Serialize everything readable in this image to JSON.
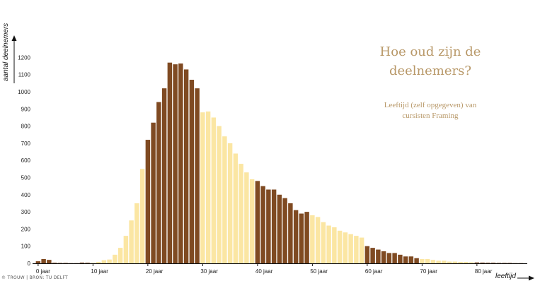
{
  "chart_data": {
    "type": "bar",
    "title_line1": "Hoe oud zijn de",
    "title_line2": "deelnemers?",
    "subtitle_line1": "Leeftijd (zelf opgegeven) van",
    "subtitle_line2": "cursisten Framing",
    "xlabel": "leeftijd",
    "ylabel": "aantal deelnemers",
    "credit": "© TROUW | BRON: TU DELFT",
    "ylim": [
      0,
      1250
    ],
    "xlim": [
      0,
      89
    ],
    "yticks": [
      0,
      100,
      200,
      300,
      400,
      500,
      600,
      700,
      800,
      900,
      1000,
      1100,
      1200
    ],
    "xticks": [
      0,
      10,
      20,
      30,
      40,
      50,
      60,
      70,
      80
    ],
    "xtick_labels": [
      "0 jaar",
      "10 jaar",
      "20 jaar",
      "30 jaar",
      "40 jaar",
      "50 jaar",
      "60 jaar",
      "70 jaar",
      "80 jaar"
    ],
    "ages": [
      0,
      1,
      2,
      3,
      4,
      5,
      6,
      7,
      8,
      9,
      10,
      11,
      12,
      13,
      14,
      15,
      16,
      17,
      18,
      19,
      20,
      21,
      22,
      23,
      24,
      25,
      26,
      27,
      28,
      29,
      30,
      31,
      32,
      33,
      34,
      35,
      36,
      37,
      38,
      39,
      40,
      41,
      42,
      43,
      44,
      45,
      46,
      47,
      48,
      49,
      50,
      51,
      52,
      53,
      54,
      55,
      56,
      57,
      58,
      59,
      60,
      61,
      62,
      63,
      64,
      65,
      66,
      67,
      68,
      69,
      70,
      71,
      72,
      73,
      74,
      75,
      76,
      77,
      78,
      79,
      80,
      81,
      82,
      83,
      84,
      85,
      86,
      87,
      88
    ],
    "values": [
      12,
      25,
      20,
      3,
      2,
      2,
      1,
      1,
      4,
      3,
      3,
      8,
      18,
      22,
      50,
      90,
      160,
      250,
      350,
      550,
      720,
      820,
      940,
      1020,
      1170,
      1160,
      1165,
      1130,
      1070,
      1020,
      880,
      885,
      850,
      800,
      740,
      700,
      640,
      580,
      530,
      490,
      480,
      450,
      430,
      430,
      400,
      380,
      350,
      310,
      290,
      300,
      280,
      270,
      240,
      220,
      210,
      190,
      180,
      170,
      160,
      150,
      100,
      90,
      80,
      70,
      60,
      60,
      50,
      40,
      40,
      30,
      25,
      25,
      20,
      15,
      15,
      10,
      10,
      8,
      8,
      6,
      5,
      4,
      3,
      3,
      2,
      2,
      2,
      1,
      1
    ],
    "band_size": 10,
    "band_colors": [
      "#fbe6a3",
      "#7f4a22"
    ],
    "band_colors_note": "alternating colour every 10 years, starting with dark for ages 0-9? no: ages 0-9 dark, 10-19 light, 20-29 dark",
    "axis_color": "#111111"
  }
}
